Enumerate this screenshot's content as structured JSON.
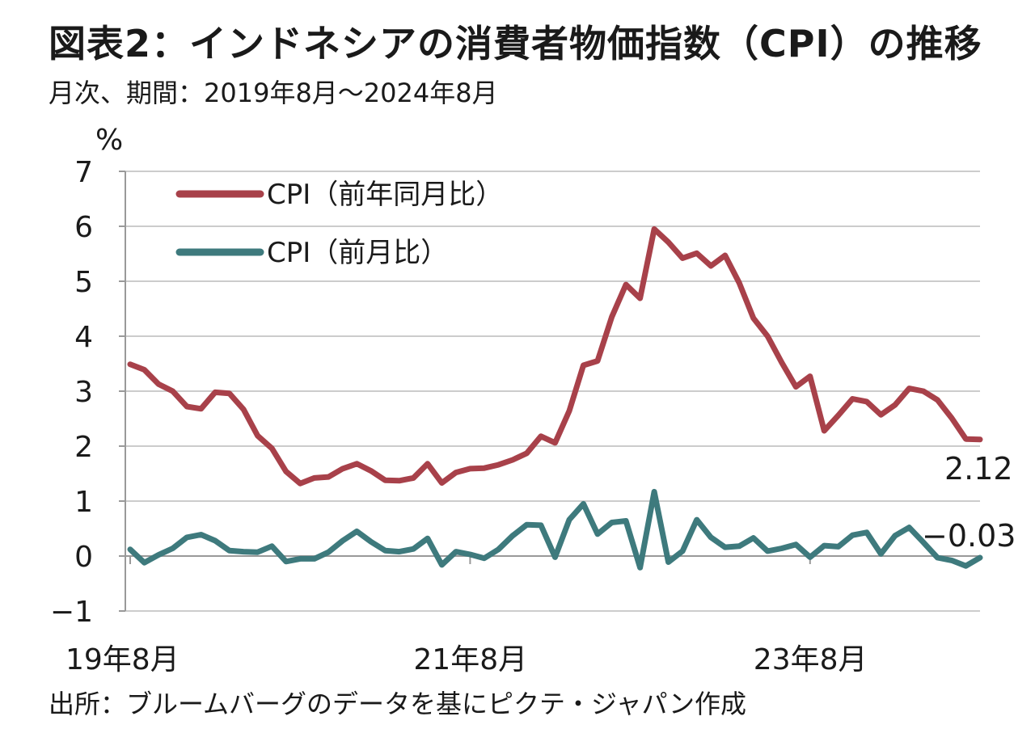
{
  "title": "図表2：インドネシアの消費者物価指数（CPI）の推移",
  "subtitle": "月次、期間：2019年8月～2024年8月",
  "source": "出所：ブルームバーグのデータを基にピクテ・ジャパン作成",
  "colors": {
    "cpi_yoy": "#a8414a",
    "cpi_mom": "#3e7a7d",
    "grid": "#cccccc",
    "axis": "#999999"
  },
  "chart_data": {
    "type": "line",
    "ylabel": "%",
    "ylim": [
      -1,
      7
    ],
    "yticks": [
      -1,
      0,
      1,
      2,
      3,
      4,
      5,
      6,
      7
    ],
    "grid": "horizontal",
    "legend_position": "top-left",
    "x": [
      "2019-08",
      "2019-09",
      "2019-10",
      "2019-11",
      "2019-12",
      "2020-01",
      "2020-02",
      "2020-03",
      "2020-04",
      "2020-05",
      "2020-06",
      "2020-07",
      "2020-08",
      "2020-09",
      "2020-10",
      "2020-11",
      "2020-12",
      "2021-01",
      "2021-02",
      "2021-03",
      "2021-04",
      "2021-05",
      "2021-06",
      "2021-07",
      "2021-08",
      "2021-09",
      "2021-10",
      "2021-11",
      "2021-12",
      "2022-01",
      "2022-02",
      "2022-03",
      "2022-04",
      "2022-05",
      "2022-06",
      "2022-07",
      "2022-08",
      "2022-09",
      "2022-10",
      "2022-11",
      "2022-12",
      "2023-01",
      "2023-02",
      "2023-03",
      "2023-04",
      "2023-05",
      "2023-06",
      "2023-07",
      "2023-08",
      "2023-09",
      "2023-10",
      "2023-11",
      "2023-12",
      "2024-01",
      "2024-02",
      "2024-03",
      "2024-04",
      "2024-05",
      "2024-06",
      "2024-07",
      "2024-08"
    ],
    "xtick_labels": [
      {
        "x": "2019-08",
        "label": "19年8月"
      },
      {
        "x": "2021-08",
        "label": "21年8月"
      },
      {
        "x": "2023-08",
        "label": "23年8月"
      }
    ],
    "series": [
      {
        "name": "CPI（前年同月比）",
        "values": [
          3.49,
          3.39,
          3.13,
          3.0,
          2.72,
          2.68,
          2.98,
          2.96,
          2.67,
          2.19,
          1.96,
          1.54,
          1.32,
          1.42,
          1.44,
          1.59,
          1.68,
          1.55,
          1.38,
          1.37,
          1.42,
          1.68,
          1.33,
          1.52,
          1.59,
          1.6,
          1.66,
          1.75,
          1.87,
          2.18,
          2.06,
          2.64,
          3.47,
          3.55,
          4.35,
          4.94,
          4.69,
          5.95,
          5.71,
          5.42,
          5.51,
          5.28,
          5.47,
          4.97,
          4.33,
          4.0,
          3.52,
          3.08,
          3.27,
          2.28,
          2.56,
          2.86,
          2.81,
          2.57,
          2.75,
          3.05,
          3.0,
          2.84,
          2.51,
          2.13,
          2.12
        ],
        "end_label": "2.12"
      },
      {
        "name": "CPI（前月比）",
        "values": [
          0.12,
          -0.12,
          0.02,
          0.14,
          0.34,
          0.39,
          0.28,
          0.1,
          0.08,
          0.07,
          0.18,
          -0.1,
          -0.05,
          -0.05,
          0.07,
          0.28,
          0.45,
          0.26,
          0.1,
          0.08,
          0.13,
          0.32,
          -0.16,
          0.08,
          0.03,
          -0.04,
          0.12,
          0.37,
          0.57,
          0.56,
          -0.02,
          0.66,
          0.95,
          0.4,
          0.61,
          0.64,
          -0.21,
          1.17,
          -0.11,
          0.09,
          0.66,
          0.34,
          0.16,
          0.18,
          0.33,
          0.09,
          0.14,
          0.21,
          -0.02,
          0.19,
          0.17,
          0.38,
          0.43,
          0.04,
          0.37,
          0.52,
          0.25,
          -0.03,
          -0.08,
          -0.18,
          -0.03
        ],
        "end_label": "−0.03"
      }
    ]
  }
}
